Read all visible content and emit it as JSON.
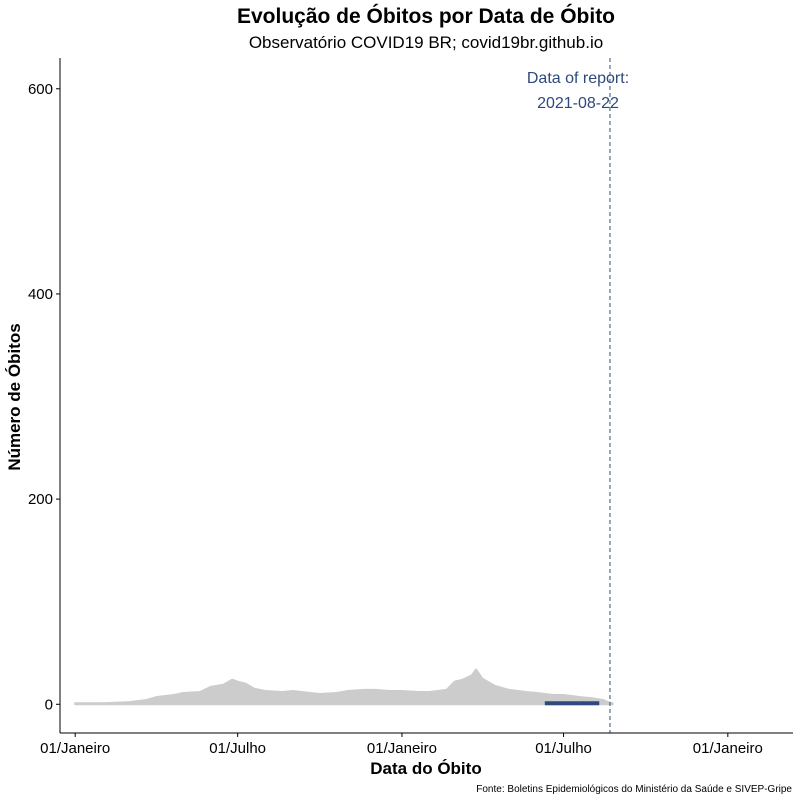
{
  "chart_data": {
    "type": "area",
    "title": "Evolução de Óbitos por Data de Óbito",
    "subtitle": "Observatório COVID19 BR; covid19br.github.io",
    "xlabel": "Data do Óbito",
    "ylabel": "Número de Óbitos",
    "caption": "Fonte: Boletins Epidemiológicos do Ministério da Saúde e SIVEP-Gripe",
    "xlim": [
      "2019-12-15",
      "2022-03-15"
    ],
    "ylim": [
      -28,
      630
    ],
    "x_ticks": [
      {
        "date": "2020-01-01",
        "label": "01/Janeiro"
      },
      {
        "date": "2020-07-01",
        "label": "01/Julho"
      },
      {
        "date": "2021-01-01",
        "label": "01/Janeiro"
      },
      {
        "date": "2021-07-01",
        "label": "01/Julho"
      },
      {
        "date": "2022-01-01",
        "label": "01/Janeiro"
      }
    ],
    "y_ticks": [
      0,
      200,
      400,
      600
    ],
    "grid": false,
    "colors": {
      "series": "#cccccc",
      "nowcast": "#2e4a7d",
      "annotation": "#2e4a7d"
    },
    "series": [
      {
        "points": [
          [
            "2020-01-01",
            1
          ],
          [
            "2020-02-01",
            1
          ],
          [
            "2020-03-01",
            2
          ],
          [
            "2020-03-20",
            4
          ],
          [
            "2020-04-01",
            7
          ],
          [
            "2020-04-20",
            9
          ],
          [
            "2020-05-01",
            11
          ],
          [
            "2020-05-20",
            12
          ],
          [
            "2020-06-01",
            17
          ],
          [
            "2020-06-15",
            19
          ],
          [
            "2020-06-25",
            24
          ],
          [
            "2020-07-01",
            22
          ],
          [
            "2020-07-10",
            20
          ],
          [
            "2020-07-20",
            15
          ],
          [
            "2020-08-01",
            13
          ],
          [
            "2020-08-20",
            12
          ],
          [
            "2020-09-01",
            13
          ],
          [
            "2020-09-20",
            11
          ],
          [
            "2020-10-01",
            10
          ],
          [
            "2020-10-20",
            11
          ],
          [
            "2020-11-01",
            13
          ],
          [
            "2020-11-20",
            14
          ],
          [
            "2020-12-01",
            14
          ],
          [
            "2020-12-20",
            13
          ],
          [
            "2021-01-01",
            13
          ],
          [
            "2021-01-20",
            12
          ],
          [
            "2021-02-01",
            12
          ],
          [
            "2021-02-20",
            14
          ],
          [
            "2021-03-01",
            22
          ],
          [
            "2021-03-10",
            24
          ],
          [
            "2021-03-20",
            28
          ],
          [
            "2021-03-25",
            34
          ],
          [
            "2021-04-01",
            25
          ],
          [
            "2021-04-15",
            18
          ],
          [
            "2021-05-01",
            14
          ],
          [
            "2021-05-20",
            12
          ],
          [
            "2021-06-01",
            11
          ],
          [
            "2021-06-20",
            9
          ],
          [
            "2021-07-01",
            9
          ],
          [
            "2021-07-20",
            7
          ],
          [
            "2021-08-01",
            6
          ],
          [
            "2021-08-15",
            4
          ],
          [
            "2021-08-20",
            2
          ],
          [
            "2021-08-25",
            1
          ]
        ]
      }
    ],
    "nowcast": {
      "x": [
        "2021-06-10",
        "2021-08-10"
      ],
      "y": 1
    },
    "report_line": {
      "date": "2021-08-22"
    },
    "annotation": {
      "lines": [
        "Data of report:",
        "2021-08-22"
      ]
    }
  }
}
